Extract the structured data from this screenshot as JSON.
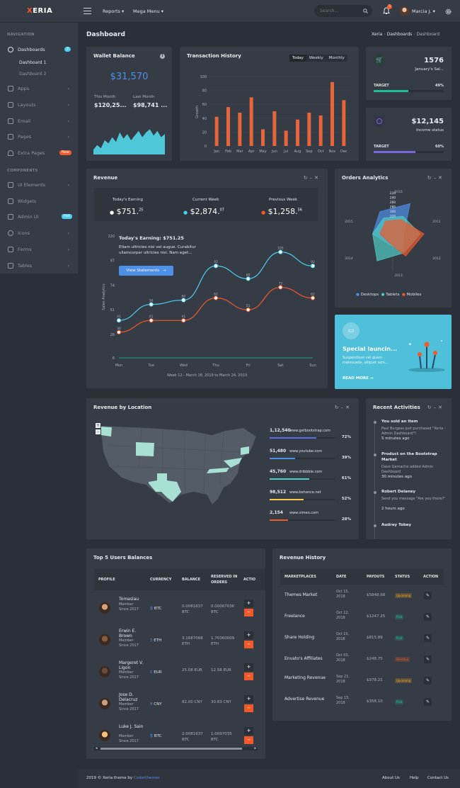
{
  "topbar": {
    "logo_x": "X",
    "logo_rest": "ERIA",
    "menu1": "Reports",
    "menu2": "Mega Menu",
    "search_placeholder": "Search...",
    "notif_count": "5",
    "user": "Marcia J."
  },
  "sidebar": {
    "section1": "NAVIGATION",
    "section2": "COMPONENTS",
    "items": [
      {
        "label": "Dashboards",
        "badge": "2"
      },
      {
        "label": "Apps"
      },
      {
        "label": "Layouts"
      },
      {
        "label": "Email"
      },
      {
        "label": "Pages"
      },
      {
        "label": "Extra Pages",
        "badge": "New"
      },
      {
        "label": "UI Elements"
      },
      {
        "label": "Widgets"
      },
      {
        "label": "Admin UI",
        "badge": "Hot"
      },
      {
        "label": "Icons"
      },
      {
        "label": "Forms"
      },
      {
        "label": "Tables"
      }
    ],
    "subitems": [
      "Dashboard 1",
      "Dashboard 2"
    ]
  },
  "page": {
    "title": "Dashboard",
    "breadcrumb": [
      "Xeria",
      "Dashboards",
      "Dashboard"
    ]
  },
  "wallet": {
    "title": "Wallet Balance",
    "amount": "$31,570",
    "this_month_label": "This Month",
    "this_month_value": "$120,25...",
    "last_month_label": "Last Month",
    "last_month_value": "$98,741 ..."
  },
  "transactions": {
    "title": "Transaction History",
    "tabs": [
      "Today",
      "Weekly",
      "Monthly"
    ],
    "ylabel": "Growth"
  },
  "target1": {
    "value": "1576",
    "label": "January's Sal...",
    "target_label": "TARGET",
    "percent": "49%",
    "fill": 0.49,
    "color": "#1dbf9a"
  },
  "target2": {
    "value": "$12,145",
    "label": "Income status",
    "target_label": "TARGET",
    "percent": "60%",
    "fill": 0.6,
    "color": "#7a68d9"
  },
  "revenue": {
    "title": "Revenue",
    "kpis": [
      {
        "label": "Today's Earning",
        "value": "$751.",
        "cents": "25",
        "color": "#ffffff"
      },
      {
        "label": "Current Week",
        "value": "$2,874.",
        "cents": "07",
        "color": "#4ecdf0"
      },
      {
        "label": "Previous Week",
        "value": "$1,258.",
        "cents": "56",
        "color": "#f1592a"
      }
    ],
    "callout_title": "Today's Earning: $751.25",
    "callout_text": "Etiam ultricies nisi vel augue. Curabitur ullamcorper ultricies nisi. Nam eget...",
    "button": "View Statements",
    "ylabel": "Sales Analytics",
    "footer": "Week 12 - March 18, 2019 to March 24, 2019"
  },
  "orders": {
    "title": "Orders Analytics",
    "legend": [
      "Desktops",
      "Tablets",
      "Mobiles"
    ],
    "legend_colors": [
      "#4e8fe8",
      "#4ecdc4",
      "#f1592a"
    ]
  },
  "promo": {
    "title": "Special launcin...",
    "text1": "Suspendisse vel quam",
    "text2": "malesuada, aliquet sem...",
    "link": "READ MORE"
  },
  "location": {
    "title": "Revenue by Location",
    "sites": [
      {
        "value": "1,12,540",
        "site": "www.getbootstrap.com",
        "percent": "72%",
        "fill": 0.72,
        "color": "#5b6ee8"
      },
      {
        "value": "51,480",
        "site": "www.youtube.com",
        "percent": "39%",
        "fill": 0.39,
        "color": "#4e8fe8"
      },
      {
        "value": "45,760",
        "site": "www.dribbble.com",
        "percent": "61%",
        "fill": 0.61,
        "color": "#4ecdc4"
      },
      {
        "value": "98,512",
        "site": "www.behance.net",
        "percent": "52%",
        "fill": 0.52,
        "color": "#f6c94e"
      },
      {
        "value": "2,154",
        "site": "www.vimeo.com",
        "percent": "28%",
        "fill": 0.28,
        "color": "#f1592a"
      }
    ]
  },
  "activities": {
    "title": "Recent Activities",
    "items": [
      {
        "title": "You sold an item",
        "text": "Paul Burgess just purchased \"Xeria - Admin Dashboard\"!",
        "time": "5 minutes ago"
      },
      {
        "title": "Product on the Bootstrap Market",
        "text": "Dave Gamache added Admin Dashboard",
        "time": "30 minutes ago"
      },
      {
        "title": "Robert Delaney",
        "text": "Send you message \"Are you there?\"",
        "time": "2 hours ago"
      },
      {
        "title": "Audrey Tobey",
        "text": "",
        "time": ""
      }
    ]
  },
  "users": {
    "title": "Top 5 Users Balances",
    "headers": [
      "PROFILE",
      "CURRENCY",
      "BALANCE",
      "RESERVED IN ORDERS",
      "ACTIO"
    ],
    "rows": [
      {
        "name": "Tomaslau",
        "role": "Member Since 2017",
        "currency": "BTC",
        "sym": "₿",
        "balance": "0.0081637 BTC",
        "reserved": "0.00067036 BTC"
      },
      {
        "name": "Erwin E. Brown",
        "role": "Member Since 2017",
        "currency": "ETH",
        "sym": "Ξ",
        "balance": "3.1687068 ETH",
        "reserved": "1.70360009 ETH"
      },
      {
        "name": "Margeret V. Ligon",
        "role": "Member Since 2017",
        "currency": "EUR",
        "sym": "€",
        "balance": "25.08 EUR",
        "reserved": "12.58 EUR"
      },
      {
        "name": "Jose D. Delacruz",
        "role": "Member Since 2017",
        "currency": "CNY",
        "sym": "¥",
        "balance": "82.00 CNY",
        "reserved": "30.83 CNY"
      },
      {
        "name": "Luke J. Sain",
        "role": "Member Since 2017",
        "currency": "BTC",
        "sym": "₿",
        "balance": "2.0081637 BTC",
        "reserved": "1.0097035 BTC"
      }
    ]
  },
  "history": {
    "title": "Revenue History",
    "headers": [
      "MARKETPLACES",
      "DATE",
      "PAYOUTS",
      "STATUS",
      "ACTION"
    ],
    "rows": [
      {
        "market": "Themes Market",
        "date": "Oct 15, 2018",
        "payout": "$5848.68",
        "status": "Upcoming",
        "color": "#f6a623"
      },
      {
        "market": "Freelance",
        "date": "Oct 12, 2018",
        "payout": "$1247.25",
        "status": "Paid",
        "color": "#1dbf9a"
      },
      {
        "market": "Share Holding",
        "date": "Oct 10, 2018",
        "payout": "$815.89",
        "status": "Paid",
        "color": "#1dbf9a"
      },
      {
        "market": "Envato's Affiliates",
        "date": "Oct 03, 2018",
        "payout": "$248.75",
        "status": "Overdue",
        "color": "#f1592a"
      },
      {
        "market": "Marketing Revenue",
        "date": "Sep 21, 2018",
        "payout": "$978.21",
        "status": "Upcoming",
        "color": "#f6a623"
      },
      {
        "market": "Advertise Revenue",
        "date": "Sep 15, 2018",
        "payout": "$358.10",
        "status": "Paid",
        "color": "#1dbf9a"
      }
    ]
  },
  "footer": {
    "copyright": "2019 © Xeria theme by ",
    "brand": "Coderthemes",
    "links": [
      "About Us",
      "Help",
      "Contact Us"
    ]
  },
  "chart_data": [
    {
      "type": "line",
      "title": "Wallet Balance",
      "x": [
        1,
        2,
        3,
        4,
        5,
        6,
        7,
        8,
        9,
        10,
        11,
        12,
        13,
        14,
        15,
        16,
        17,
        18,
        19,
        20
      ],
      "values": [
        3,
        6,
        4,
        9,
        7,
        11,
        8,
        14,
        10,
        13,
        9,
        12,
        15,
        11,
        14,
        16,
        12,
        15,
        11,
        13
      ]
    },
    {
      "type": "bar",
      "title": "Transaction History",
      "categories": [
        "Jan",
        "Feb",
        "Mar",
        "Apr",
        "May",
        "Jun",
        "Jul",
        "Aug",
        "Sep",
        "Oct",
        "Nov",
        "Dec"
      ],
      "values": [
        42,
        56,
        48,
        70,
        24,
        50,
        22,
        38,
        48,
        44,
        92,
        66
      ],
      "ylabel": "Growth",
      "ylim": [
        0,
        100
      ],
      "yticks": [
        0,
        20,
        40,
        60,
        80,
        100
      ]
    },
    {
      "type": "line",
      "title": "Revenue",
      "categories": [
        "Mon",
        "Tue",
        "Wed",
        "Thu",
        "Fri",
        "Sat",
        "Sun"
      ],
      "ylabel": "Sales Analytics",
      "ylim": [
        6,
        120
      ],
      "yticks": [
        6,
        28,
        51,
        74,
        97,
        120
      ],
      "series": [
        {
          "name": "Current Week",
          "values": [
            41,
            56,
            60,
            92,
            80,
            105,
            92
          ],
          "color": "#4ecdf0"
        },
        {
          "name": "Previous Week",
          "values": [
            30,
            41,
            41,
            62,
            51,
            72,
            62
          ],
          "color": "#f1592a"
        }
      ]
    },
    {
      "type": "radar",
      "title": "Orders Analytics",
      "axes": [
        "2011",
        "2012",
        "2013",
        "2014",
        "2015",
        "2016"
      ],
      "scale_ticks": [
        "220",
        "240",
        "260",
        "280",
        "300",
        "320"
      ],
      "series": [
        {
          "name": "Desktops",
          "values": [
            0.95,
            0.3,
            0.55,
            0.3,
            0.55,
            0.7
          ]
        },
        {
          "name": "Tablets",
          "values": [
            0.55,
            0.75,
            0.6,
            0.85,
            0.55,
            0.5
          ]
        },
        {
          "name": "Mobiles",
          "values": [
            0.45,
            0.85,
            0.7,
            0.25,
            0.35,
            0.4
          ]
        }
      ]
    }
  ]
}
